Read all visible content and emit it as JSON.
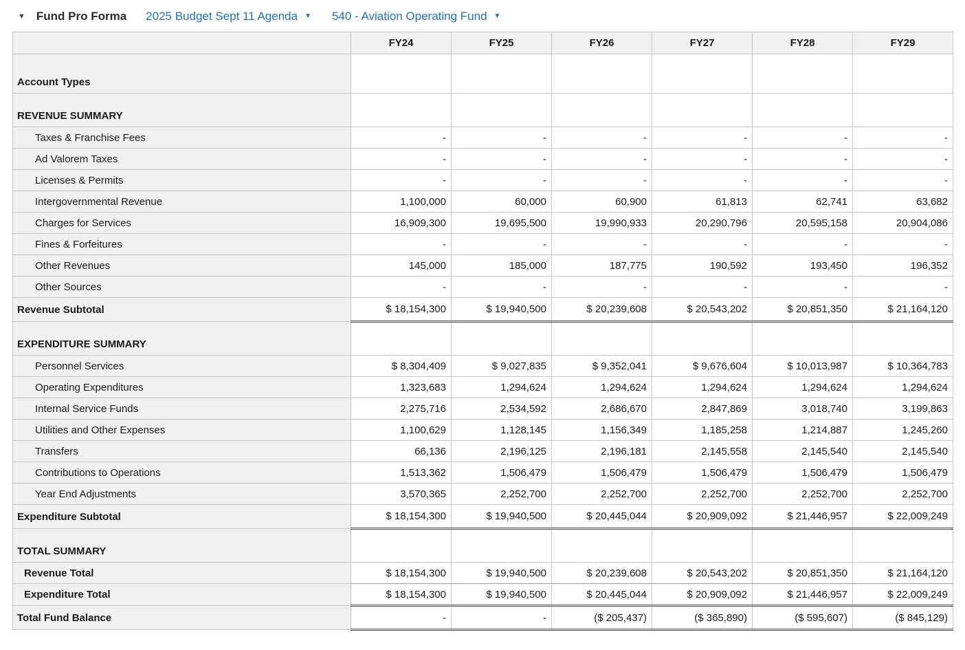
{
  "header": {
    "collapse_icon": "▼",
    "title": "Fund Pro Forma",
    "budget_dropdown": "2025 Budget Sept 11 Agenda",
    "fund_dropdown": "540 - Aviation Operating Fund",
    "dropdown_caret": "▼",
    "link_color": "#2272bd"
  },
  "table": {
    "columns": [
      "FY24",
      "FY25",
      "FY26",
      "FY27",
      "FY28",
      "FY29"
    ],
    "rows": [
      {
        "label": "Account Types",
        "kind": "section-tall",
        "values": [
          "",
          "",
          "",
          "",
          "",
          ""
        ]
      },
      {
        "label": "REVENUE SUMMARY",
        "kind": "section",
        "values": [
          "",
          "",
          "",
          "",
          "",
          ""
        ]
      },
      {
        "label": "Taxes & Franchise Fees",
        "kind": "detail",
        "values": [
          "-",
          "-",
          "-",
          "-",
          "-",
          "-"
        ]
      },
      {
        "label": "Ad Valorem Taxes",
        "kind": "detail",
        "values": [
          "-",
          "-",
          "-",
          "-",
          "-",
          "-"
        ]
      },
      {
        "label": "Licenses & Permits",
        "kind": "detail",
        "values": [
          "-",
          "-",
          "-",
          "-",
          "-",
          "-"
        ]
      },
      {
        "label": "Intergovernmental Revenue",
        "kind": "detail",
        "values": [
          "1,100,000",
          "60,000",
          "60,900",
          "61,813",
          "62,741",
          "63,682"
        ]
      },
      {
        "label": "Charges for Services",
        "kind": "detail",
        "values": [
          "16,909,300",
          "19,695,500",
          "19,990,933",
          "20,290,796",
          "20,595,158",
          "20,904,086"
        ]
      },
      {
        "label": "Fines & Forfeitures",
        "kind": "detail",
        "values": [
          "-",
          "-",
          "-",
          "-",
          "-",
          "-"
        ]
      },
      {
        "label": "Other Revenues",
        "kind": "detail",
        "values": [
          "145,000",
          "185,000",
          "187,775",
          "190,592",
          "193,450",
          "196,352"
        ]
      },
      {
        "label": "Other Sources",
        "kind": "detail",
        "values": [
          "-",
          "-",
          "-",
          "-",
          "-",
          "-"
        ]
      },
      {
        "label": "Revenue Subtotal",
        "kind": "subtotal",
        "values": [
          "$ 18,154,300",
          "$ 19,940,500",
          "$ 20,239,608",
          "$ 20,543,202",
          "$ 20,851,350",
          "$ 21,164,120"
        ]
      },
      {
        "label": "EXPENDITURE SUMMARY",
        "kind": "section",
        "values": [
          "",
          "",
          "",
          "",
          "",
          ""
        ]
      },
      {
        "label": "Personnel Services",
        "kind": "detail",
        "values": [
          "$ 8,304,409",
          "$ 9,027,835",
          "$ 9,352,041",
          "$ 9,676,604",
          "$ 10,013,987",
          "$ 10,364,783"
        ]
      },
      {
        "label": "Operating Expenditures",
        "kind": "detail",
        "values": [
          "1,323,683",
          "1,294,624",
          "1,294,624",
          "1,294,624",
          "1,294,624",
          "1,294,624"
        ]
      },
      {
        "label": "Internal Service Funds",
        "kind": "detail",
        "values": [
          "2,275,716",
          "2,534,592",
          "2,686,670",
          "2,847,869",
          "3,018,740",
          "3,199,863"
        ]
      },
      {
        "label": "Utilities and Other Expenses",
        "kind": "detail",
        "values": [
          "1,100,629",
          "1,128,145",
          "1,156,349",
          "1,185,258",
          "1,214,887",
          "1,245,260"
        ]
      },
      {
        "label": "Transfers",
        "kind": "detail",
        "values": [
          "66,136",
          "2,196,125",
          "2,196,181",
          "2,145,558",
          "2,145,540",
          "2,145,540"
        ]
      },
      {
        "label": "Contributions to Operations",
        "kind": "detail",
        "values": [
          "1,513,362",
          "1,506,479",
          "1,506,479",
          "1,506,479",
          "1,506,479",
          "1,506,479"
        ]
      },
      {
        "label": "Year End Adjustments",
        "kind": "detail",
        "values": [
          "3,570,365",
          "2,252,700",
          "2,252,700",
          "2,252,700",
          "2,252,700",
          "2,252,700"
        ]
      },
      {
        "label": "Expenditure Subtotal",
        "kind": "subtotal",
        "values": [
          "$ 18,154,300",
          "$ 19,940,500",
          "$ 20,445,044",
          "$ 20,909,092",
          "$ 21,446,957",
          "$ 22,009,249"
        ]
      },
      {
        "label": "TOTAL SUMMARY",
        "kind": "section",
        "values": [
          "",
          "",
          "",
          "",
          "",
          ""
        ]
      },
      {
        "label": "Revenue Total",
        "kind": "total",
        "values": [
          "$ 18,154,300",
          "$ 19,940,500",
          "$ 20,239,608",
          "$ 20,543,202",
          "$ 20,851,350",
          "$ 21,164,120"
        ]
      },
      {
        "label": "Expenditure Total",
        "kind": "total-double",
        "values": [
          "$ 18,154,300",
          "$ 19,940,500",
          "$ 20,445,044",
          "$ 20,909,092",
          "$ 21,446,957",
          "$ 22,009,249"
        ]
      },
      {
        "label": "Total Fund Balance",
        "kind": "grand",
        "values": [
          "-",
          "-",
          "($ 205,437)",
          "($ 365,890)",
          "($ 595,607)",
          "($ 845,129)"
        ]
      }
    ]
  }
}
